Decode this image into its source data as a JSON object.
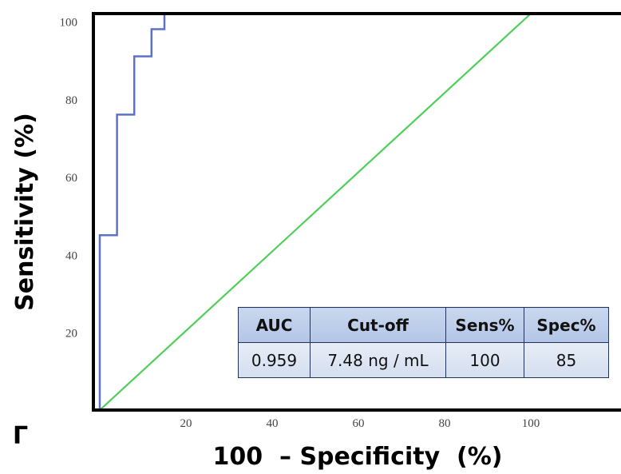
{
  "panel_label": "Γ",
  "table": {
    "headers": [
      "AUC",
      "Cut-off",
      "Sens%",
      "Spec%"
    ],
    "values": [
      "0.959",
      "7.48 ng / mL",
      "100",
      "85"
    ]
  },
  "colors": {
    "roc": "#5b72c8",
    "reference": "#4fce5a",
    "axis": "#000000"
  },
  "chart_data": {
    "type": "line",
    "title": "",
    "xlabel": "100  – Specificity  (%)",
    "ylabel": "Sensitivity (%)",
    "xlim": [
      0,
      120
    ],
    "ylim": [
      0,
      102
    ],
    "xticks": [
      20,
      40,
      60,
      80,
      100
    ],
    "yticks": [
      20,
      40,
      60,
      80,
      100
    ],
    "grid": false,
    "series": [
      {
        "points": [
          [
            0,
            0
          ],
          [
            0,
            45
          ],
          [
            4,
            45
          ],
          [
            4,
            76
          ],
          [
            8,
            76
          ],
          [
            8,
            91
          ],
          [
            12,
            91
          ],
          [
            12,
            98
          ],
          [
            15,
            98
          ],
          [
            15,
            102
          ]
        ]
      },
      {
        "points": [
          [
            0,
            0
          ],
          [
            100,
            102
          ]
        ]
      }
    ]
  }
}
